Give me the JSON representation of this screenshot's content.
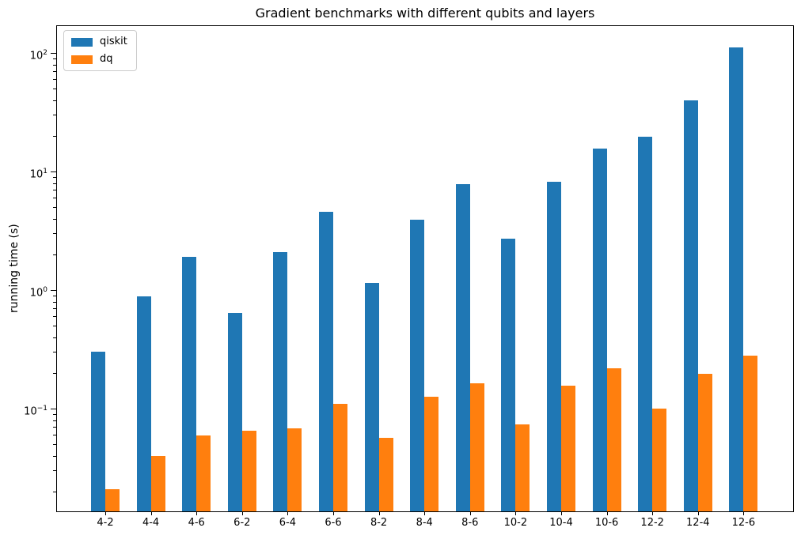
{
  "chart_data": {
    "type": "bar",
    "title": "Gradient benchmarks with different qubits and layers",
    "xlabel": "",
    "ylabel": "running time (s)",
    "yscale": "log",
    "ylim": [
      0.0134,
      170
    ],
    "grid": false,
    "legend_position": "upper left",
    "categories": [
      "4-2",
      "4-4",
      "4-6",
      "6-2",
      "6-4",
      "6-6",
      "8-2",
      "8-4",
      "8-6",
      "10-2",
      "10-4",
      "10-6",
      "12-2",
      "12-4",
      "12-6"
    ],
    "series": [
      {
        "name": "qiskit",
        "color": "#1f77b4",
        "values": [
          0.3,
          0.88,
          1.9,
          0.64,
          2.1,
          4.6,
          1.14,
          3.9,
          7.8,
          2.7,
          8.2,
          15.7,
          19.8,
          40,
          111
        ]
      },
      {
        "name": "dq",
        "color": "#ff7f0e",
        "values": [
          0.021,
          0.04,
          0.059,
          0.065,
          0.068,
          0.11,
          0.057,
          0.126,
          0.163,
          0.074,
          0.156,
          0.219,
          0.1,
          0.196,
          0.28
        ]
      }
    ],
    "y_axis": {
      "major_ticks": [
        {
          "value": 100,
          "exponent": 2
        },
        {
          "value": 10,
          "exponent": 1
        },
        {
          "value": 1,
          "exponent": 0
        },
        {
          "value": 0.1,
          "exponent": -1
        }
      ],
      "tick_label_base": "10"
    }
  }
}
